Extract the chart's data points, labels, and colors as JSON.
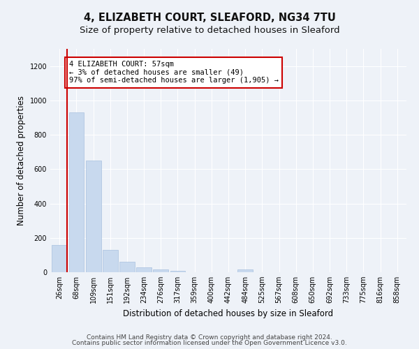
{
  "title": "4, ELIZABETH COURT, SLEAFORD, NG34 7TU",
  "subtitle": "Size of property relative to detached houses in Sleaford",
  "xlabel": "Distribution of detached houses by size in Sleaford",
  "ylabel": "Number of detached properties",
  "bar_color": "#c8d9ee",
  "bar_edge_color": "#a8c0de",
  "categories": [
    "26sqm",
    "68sqm",
    "109sqm",
    "151sqm",
    "192sqm",
    "234sqm",
    "276sqm",
    "317sqm",
    "359sqm",
    "400sqm",
    "442sqm",
    "484sqm",
    "525sqm",
    "567sqm",
    "608sqm",
    "650sqm",
    "692sqm",
    "733sqm",
    "775sqm",
    "816sqm",
    "858sqm"
  ],
  "values": [
    160,
    930,
    650,
    130,
    60,
    30,
    15,
    10,
    0,
    0,
    0,
    15,
    0,
    0,
    0,
    0,
    0,
    0,
    0,
    0,
    0
  ],
  "ylim": [
    0,
    1300
  ],
  "yticks": [
    0,
    200,
    400,
    600,
    800,
    1000,
    1200
  ],
  "annotation_line1": "4 ELIZABETH COURT: 57sqm",
  "annotation_line2": "← 3% of detached houses are smaller (49)",
  "annotation_line3": "97% of semi-detached houses are larger (1,905) →",
  "annotation_box_color": "#cc0000",
  "footnote_line1": "Contains HM Land Registry data © Crown copyright and database right 2024.",
  "footnote_line2": "Contains public sector information licensed under the Open Government Licence v3.0.",
  "background_color": "#eef2f8",
  "grid_color": "#ffffff",
  "title_fontsize": 10.5,
  "subtitle_fontsize": 9.5,
  "ylabel_fontsize": 8.5,
  "xlabel_fontsize": 8.5,
  "tick_fontsize": 7,
  "footnote_fontsize": 6.5
}
